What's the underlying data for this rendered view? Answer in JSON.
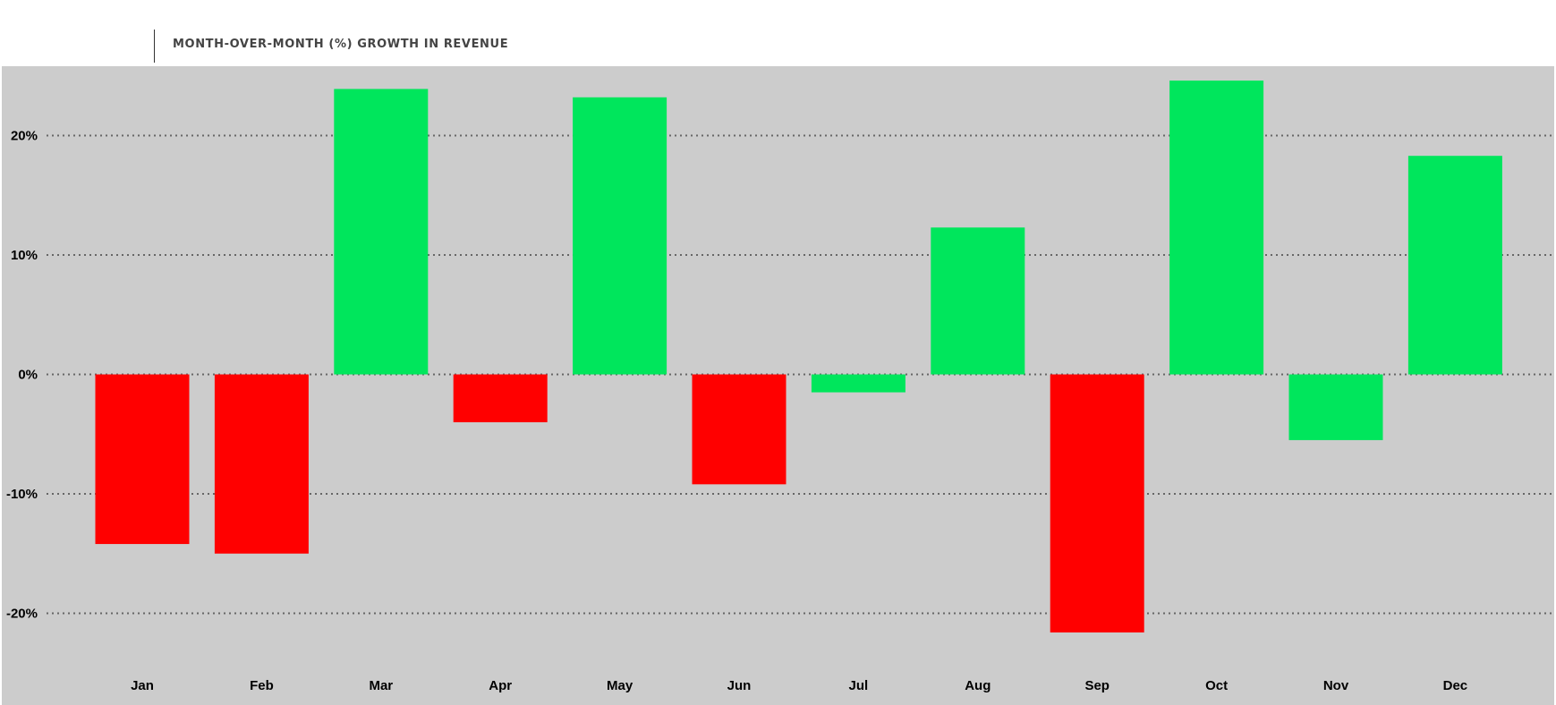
{
  "chart_data": {
    "type": "bar",
    "title": "MONTH-OVER-MONTH (%) GROWTH IN REVENUE",
    "xlabel": "",
    "ylabel": "",
    "categories": [
      "Jan",
      "Feb",
      "Mar",
      "Apr",
      "May",
      "Jun",
      "Jul",
      "Aug",
      "Sep",
      "Oct",
      "Nov",
      "Dec"
    ],
    "values": [
      -14.2,
      -15.0,
      23.9,
      -4.0,
      23.2,
      -9.2,
      -1.5,
      12.3,
      -21.6,
      24.6,
      -5.5,
      18.3
    ],
    "bar_colors": [
      "#ff0000",
      "#ff0000",
      "#00e65c",
      "#ff0000",
      "#00e65c",
      "#ff0000",
      "#00e65c",
      "#00e65c",
      "#ff0000",
      "#00e65c",
      "#00e65c",
      "#00e65c"
    ],
    "yticks": [
      20,
      10,
      0,
      -10,
      -20
    ],
    "ytick_labels": [
      "20%",
      "10%",
      "0%",
      "-10%",
      "-20%"
    ],
    "ylim": [
      -25,
      25
    ],
    "grid": "horizontal-dotted",
    "legend": "none",
    "background_color": "#cccccc"
  }
}
